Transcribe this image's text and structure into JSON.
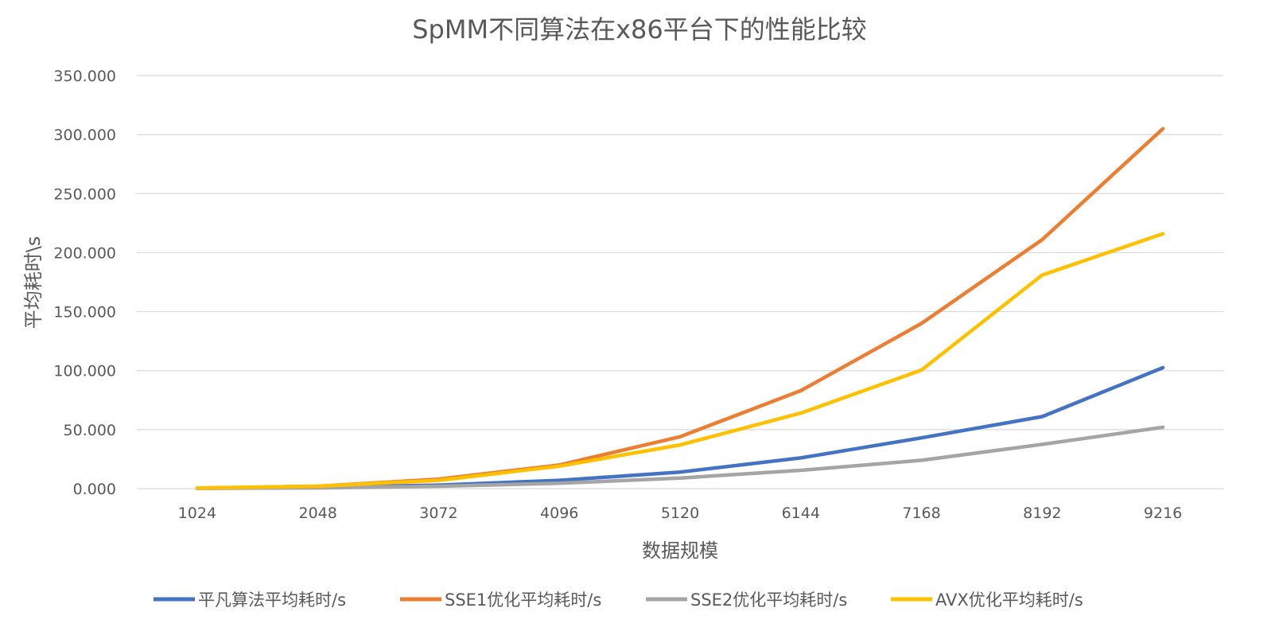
{
  "chart_data": {
    "type": "line",
    "title": "SpMM不同算法在x86平台下的性能比较",
    "xlabel": "数据规模",
    "ylabel": "平均耗时\\s",
    "categories": [
      "1024",
      "2048",
      "3072",
      "4096",
      "5120",
      "6144",
      "7168",
      "8192",
      "9216"
    ],
    "ylim": [
      0,
      350
    ],
    "yticks": [
      "0.000",
      "50.000",
      "100.000",
      "150.000",
      "200.000",
      "250.000",
      "300.000",
      "350.000"
    ],
    "grid": true,
    "legend_position": "bottom",
    "series": [
      {
        "name": "平凡算法平均耗时/s",
        "color": "#4472c4",
        "values": [
          0.3,
          1.0,
          3.0,
          7.0,
          14.0,
          26.0,
          43.0,
          61.0,
          102.5
        ]
      },
      {
        "name": "SSE1优化平均耗时/s",
        "color": "#ed7d31",
        "values": [
          0.5,
          2.0,
          8.0,
          20.0,
          44.0,
          83.0,
          140.0,
          211.0,
          305.0
        ]
      },
      {
        "name": "SSE2优化平均耗时/s",
        "color": "#a5a5a5",
        "values": [
          0.2,
          0.6,
          2.0,
          4.5,
          9.0,
          15.5,
          24.0,
          37.5,
          52.0
        ]
      },
      {
        "name": "AVX优化平均耗时/s",
        "color": "#ffc000",
        "values": [
          0.5,
          2.0,
          7.0,
          19.0,
          37.0,
          64.0,
          100.5,
          181.0,
          216.0
        ]
      }
    ]
  }
}
